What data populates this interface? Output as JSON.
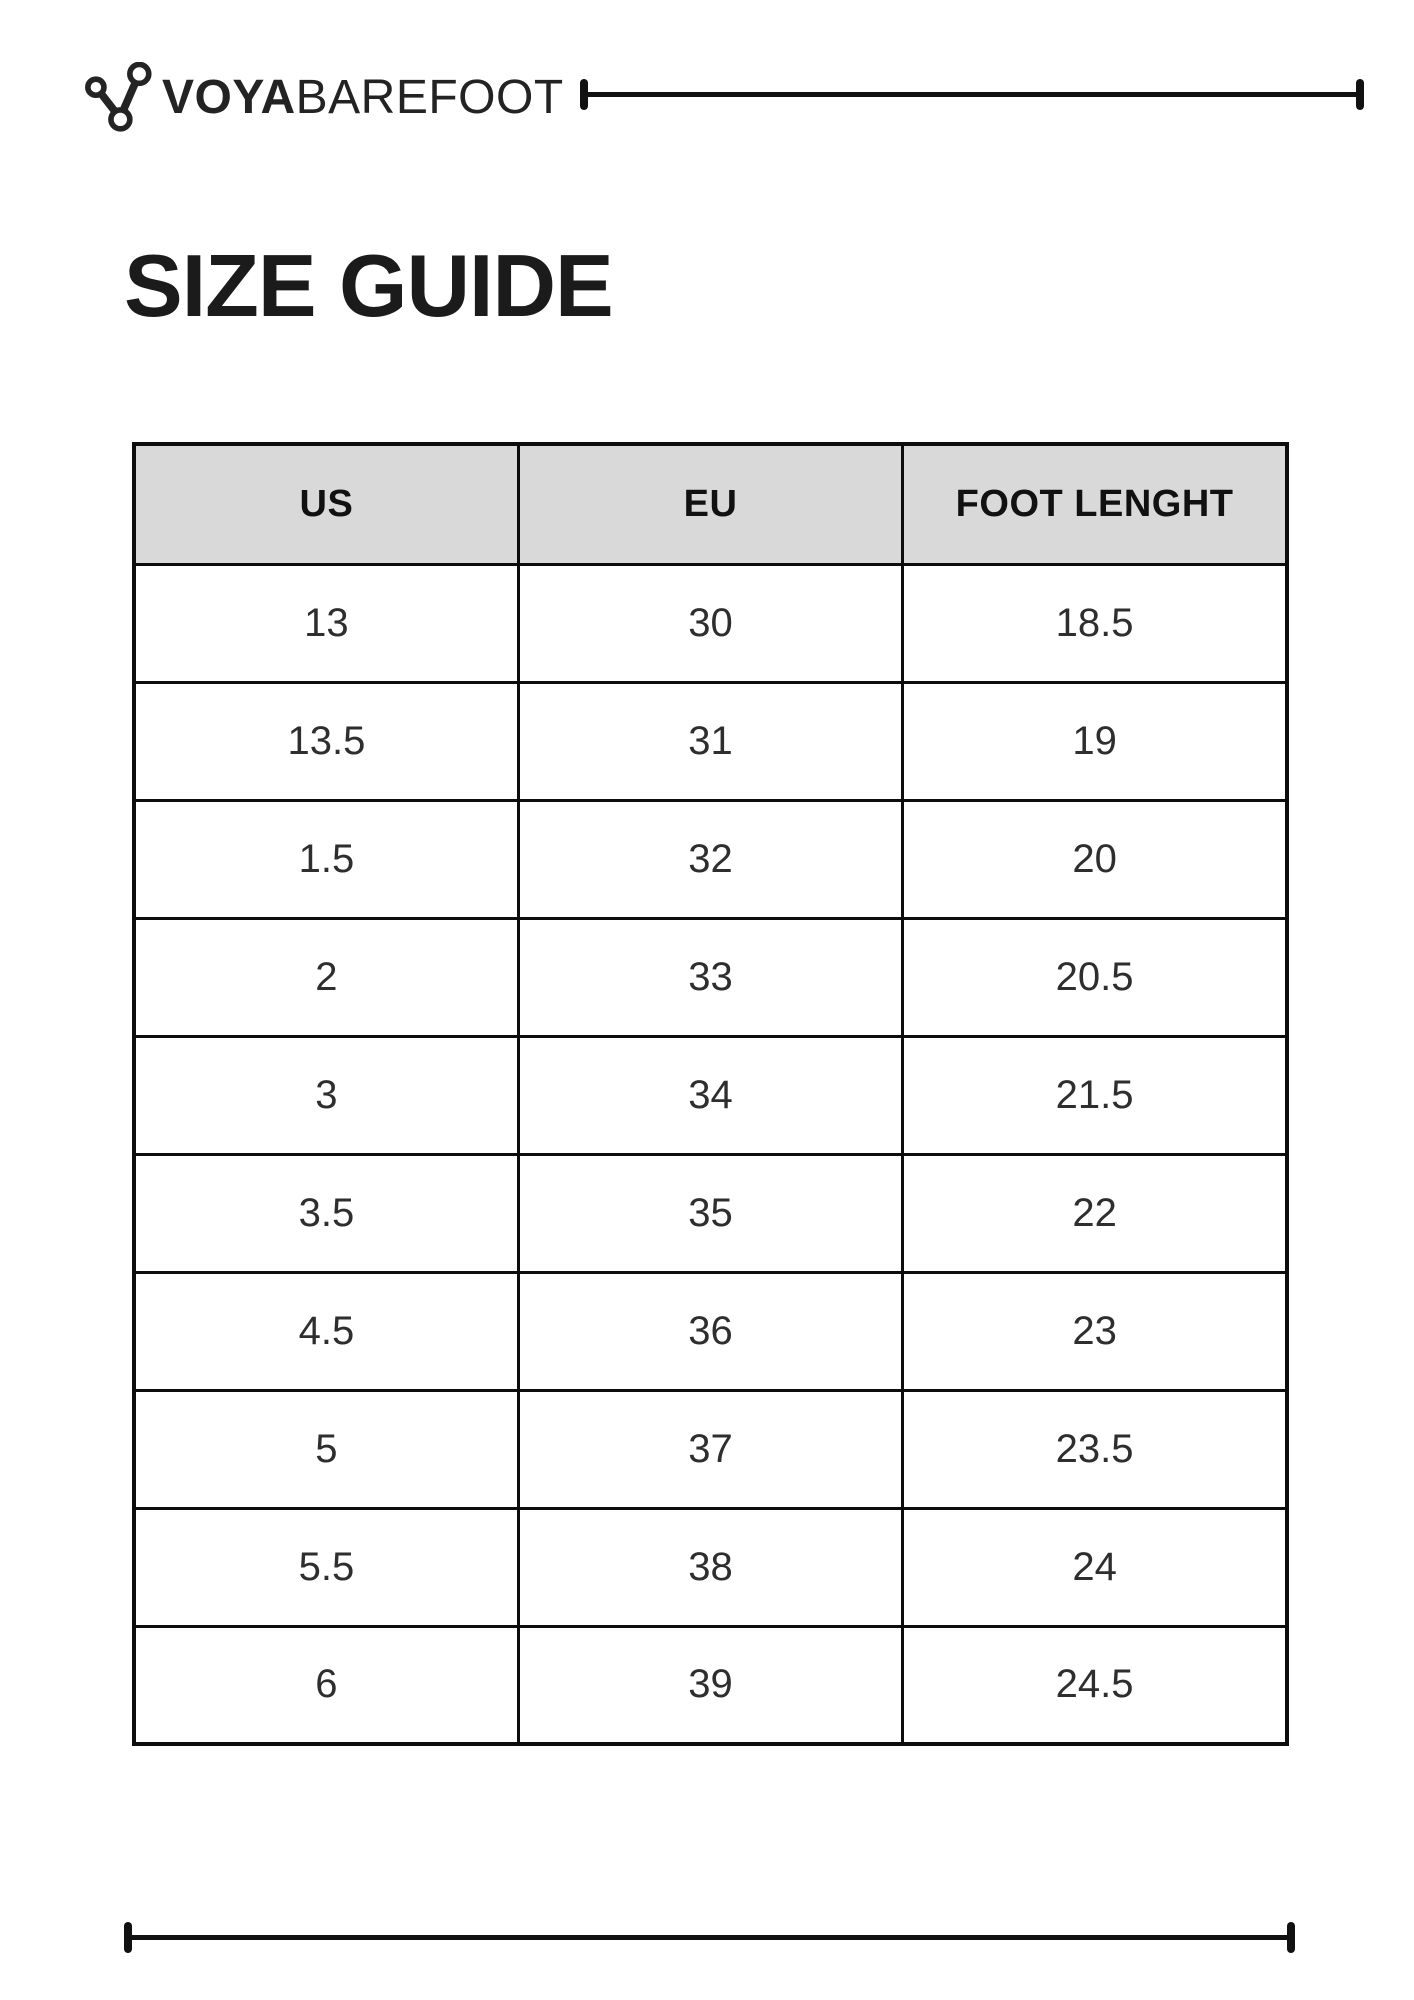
{
  "brand": {
    "primary": "VOYA",
    "secondary": "BAREFOOT",
    "logo_icon": "three-node-branch-icon"
  },
  "page": {
    "title": "SIZE GUIDE"
  },
  "table": {
    "columns": [
      "US",
      "EU",
      "FOOT LENGHT"
    ],
    "rows": [
      [
        "13",
        "30",
        "18.5"
      ],
      [
        "13.5",
        "31",
        "19"
      ],
      [
        "1.5",
        "32",
        "20"
      ],
      [
        "2",
        "33",
        "20.5"
      ],
      [
        "3",
        "34",
        "21.5"
      ],
      [
        "3.5",
        "35",
        "22"
      ],
      [
        "4.5",
        "36",
        "23"
      ],
      [
        "5",
        "37",
        "23.5"
      ],
      [
        "5.5",
        "38",
        "24"
      ],
      [
        "6",
        "39",
        "24.5"
      ]
    ]
  },
  "colors": {
    "header_bg": "#d9d9d9",
    "border": "#0d0d0d",
    "text": "#232323",
    "line": "#111111"
  }
}
